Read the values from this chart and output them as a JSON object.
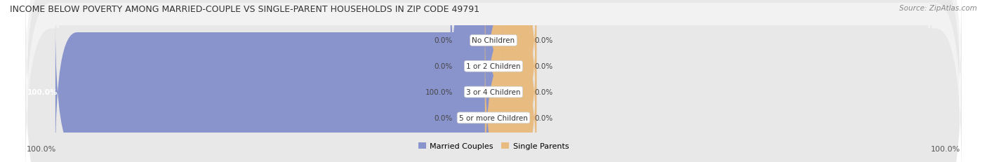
{
  "title": "INCOME BELOW POVERTY AMONG MARRIED-COUPLE VS SINGLE-PARENT HOUSEHOLDS IN ZIP CODE 49791",
  "source": "Source: ZipAtlas.com",
  "categories": [
    "No Children",
    "1 or 2 Children",
    "3 or 4 Children",
    "5 or more Children"
  ],
  "married_values": [
    0.0,
    0.0,
    100.0,
    0.0
  ],
  "single_values": [
    0.0,
    0.0,
    0.0,
    0.0
  ],
  "married_color": "#8A94CC",
  "single_color": "#E8BB80",
  "bar_bg_color": "#E8E8E8",
  "row_bg_even": "#F2F2F2",
  "row_bg_odd": "#E8E8E8",
  "axis_max": 100.0,
  "legend_married": "Married Couples",
  "legend_single": "Single Parents",
  "bottom_left_label": "100.0%",
  "bottom_right_label": "100.0%"
}
